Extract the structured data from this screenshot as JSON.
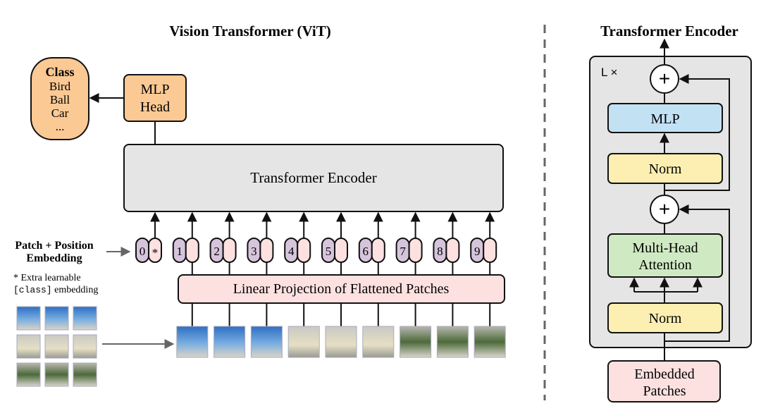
{
  "vit": {
    "title": "Vision Transformer (ViT)",
    "class_box": {
      "heading": "Class",
      "items": [
        "Bird",
        "Ball",
        "Car",
        "..."
      ]
    },
    "mlp_head": [
      "MLP",
      "Head"
    ],
    "encoder_label": "Transformer Encoder",
    "tokens": [
      "0",
      "1",
      "2",
      "3",
      "4",
      "5",
      "6",
      "7",
      "8",
      "9"
    ],
    "class_token_mark": "*",
    "projection_label": "Linear Projection of Flattened Patches",
    "embedding_label": [
      "Patch + Position",
      "Embedding"
    ],
    "footnote": {
      "line1": "* Extra learnable",
      "code": "[class]",
      "rest": " embedding"
    }
  },
  "encoder": {
    "title": "Transformer Encoder",
    "repeat_label": "L ×",
    "plus": "+",
    "mlp": "MLP",
    "norm": "Norm",
    "attention": [
      "Multi-Head",
      "Attention"
    ],
    "input": [
      "Embedded",
      "Patches"
    ]
  },
  "colors": {
    "orange": "#fbc994",
    "grey": "#e5e5e5",
    "pink": "#fde1e1",
    "purple": "#d6c4dc",
    "blue": "#c2e2f4",
    "yellow": "#fcefb1",
    "green": "#cfeac3"
  }
}
